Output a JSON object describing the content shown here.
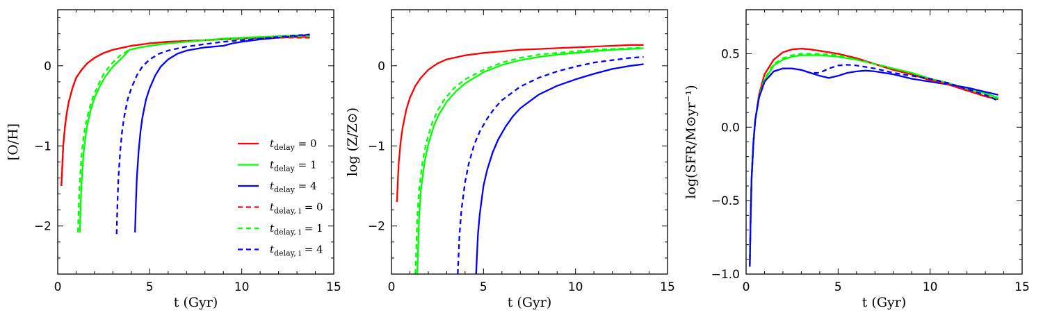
{
  "chart_data": [
    {
      "type": "line",
      "xlabel": "t (Gyr)",
      "ylabel": "[O/H]",
      "xlim": [
        0,
        15
      ],
      "ylim": [
        -2.6,
        0.7
      ],
      "xticks": [
        0,
        5,
        10,
        15
      ],
      "yticks": [
        -2,
        -1,
        0
      ],
      "xtick_labels": [
        "0",
        "5",
        "10",
        "15"
      ],
      "ytick_labels": [
        "−2",
        "−1",
        "0"
      ],
      "legend": {
        "position": "lower-right",
        "entries": [
          {
            "label": "t_delay = 0",
            "main": "t",
            "sub": "delay",
            "rest": " = 0",
            "color": "#ff0000",
            "dash": "solid"
          },
          {
            "label": "t_delay = 1",
            "main": "t",
            "sub": "delay",
            "rest": " = 1",
            "color": "#00ff00",
            "dash": "solid"
          },
          {
            "label": "t_delay = 4",
            "main": "t",
            "sub": "delay",
            "rest": " = 4",
            "color": "#0000ff",
            "dash": "solid"
          },
          {
            "label": "t_delay,i = 0",
            "main": "t",
            "sub": "delay, i",
            "rest": " = 0",
            "color": "#ff0000",
            "dash": "dashed"
          },
          {
            "label": "t_delay,i = 1",
            "main": "t",
            "sub": "delay, i",
            "rest": " = 1",
            "color": "#00ff00",
            "dash": "dashed"
          },
          {
            "label": "t_delay,i = 4",
            "main": "t",
            "sub": "delay, i",
            "rest": " = 4",
            "color": "#0000ff",
            "dash": "dashed"
          }
        ]
      },
      "series": [
        {
          "color": "#ff0000",
          "dash": "solid",
          "x": [
            0.2,
            0.3,
            0.4,
            0.5,
            0.6,
            0.8,
            1.0,
            1.3,
            1.6,
            2.0,
            2.5,
            3.0,
            4.0,
            5.0,
            6.0,
            7.0,
            8.0,
            9.0,
            10.0,
            11.0,
            12.0,
            13.0,
            13.7
          ],
          "y": [
            -1.5,
            -1.0,
            -0.75,
            -0.58,
            -0.45,
            -0.28,
            -0.15,
            -0.05,
            0.03,
            0.1,
            0.16,
            0.2,
            0.25,
            0.28,
            0.3,
            0.31,
            0.32,
            0.33,
            0.34,
            0.35,
            0.35,
            0.36,
            0.36
          ]
        },
        {
          "color": "#00ff00",
          "dash": "solid",
          "x": [
            1.2,
            1.25,
            1.3,
            1.4,
            1.5,
            1.6,
            1.8,
            2.0,
            2.3,
            2.6,
            3.0,
            3.5,
            3.9,
            4.5,
            5.0,
            6.0,
            7.0,
            8.0,
            9.0,
            10.0,
            11.0,
            12.0,
            13.0,
            13.7
          ],
          "y": [
            -2.08,
            -1.7,
            -1.45,
            -1.1,
            -0.9,
            -0.75,
            -0.55,
            -0.4,
            -0.25,
            -0.13,
            -0.01,
            0.1,
            0.2,
            0.23,
            0.25,
            0.28,
            0.3,
            0.32,
            0.34,
            0.35,
            0.36,
            0.37,
            0.38,
            0.38
          ]
        },
        {
          "color": "#0000ff",
          "dash": "solid",
          "x": [
            4.2,
            4.25,
            4.3,
            4.4,
            4.5,
            4.6,
            4.8,
            5.0,
            5.3,
            5.6,
            6.0,
            6.5,
            7.0,
            8.0,
            9.0,
            9.5,
            10.0,
            11.0,
            12.0,
            13.0,
            13.7
          ],
          "y": [
            -2.08,
            -1.7,
            -1.4,
            -1.05,
            -0.82,
            -0.65,
            -0.42,
            -0.28,
            -0.12,
            -0.01,
            0.08,
            0.15,
            0.19,
            0.23,
            0.25,
            0.28,
            0.3,
            0.33,
            0.35,
            0.37,
            0.39
          ]
        },
        {
          "color": "#ff0000",
          "dash": "dashed",
          "x": [
            0.2,
            0.3,
            0.4,
            0.5,
            0.6,
            0.8,
            1.0,
            1.3,
            1.6,
            2.0,
            2.5,
            3.0,
            4.0,
            5.0,
            6.0,
            7.0,
            8.0,
            9.0,
            10.0,
            11.0,
            12.0,
            13.0,
            13.7
          ],
          "y": [
            -1.5,
            -1.0,
            -0.75,
            -0.58,
            -0.45,
            -0.28,
            -0.15,
            -0.05,
            0.03,
            0.1,
            0.16,
            0.2,
            0.25,
            0.28,
            0.3,
            0.31,
            0.32,
            0.33,
            0.34,
            0.35,
            0.35,
            0.35,
            0.35
          ]
        },
        {
          "color": "#00ff00",
          "dash": "dashed",
          "x": [
            1.1,
            1.15,
            1.2,
            1.3,
            1.4,
            1.5,
            1.7,
            1.9,
            2.2,
            2.5,
            2.9,
            3.4,
            3.9,
            4.5,
            5.0,
            6.0,
            7.0,
            8.0,
            9.0,
            10.0,
            11.0,
            12.0,
            13.0,
            13.7
          ],
          "y": [
            -2.08,
            -1.7,
            -1.45,
            -1.1,
            -0.9,
            -0.75,
            -0.55,
            -0.4,
            -0.24,
            -0.1,
            0.02,
            0.13,
            0.2,
            0.23,
            0.25,
            0.28,
            0.3,
            0.32,
            0.33,
            0.34,
            0.35,
            0.36,
            0.37,
            0.37
          ]
        },
        {
          "color": "#0000ff",
          "dash": "dashed",
          "x": [
            3.2,
            3.25,
            3.3,
            3.4,
            3.5,
            3.6,
            3.8,
            4.0,
            4.3,
            4.6,
            5.0,
            5.5,
            6.0,
            7.0,
            8.0,
            9.0,
            10.0,
            11.0,
            12.0,
            13.0,
            13.7
          ],
          "y": [
            -2.1,
            -1.7,
            -1.4,
            -1.05,
            -0.82,
            -0.65,
            -0.42,
            -0.28,
            -0.12,
            -0.01,
            0.08,
            0.15,
            0.19,
            0.24,
            0.27,
            0.3,
            0.32,
            0.34,
            0.36,
            0.38,
            0.39
          ]
        }
      ]
    },
    {
      "type": "line",
      "xlabel": "t (Gyr)",
      "ylabel": "log (Z/Z⊙)",
      "xlim": [
        0,
        15
      ],
      "ylim": [
        -2.6,
        0.7
      ],
      "xticks": [
        0,
        5,
        10,
        15
      ],
      "yticks": [
        -2,
        -1,
        0
      ],
      "xtick_labels": [
        "0",
        "5",
        "10",
        "15"
      ],
      "ytick_labels": [
        "−2",
        "−1",
        "0"
      ],
      "series": [
        {
          "color": "#ff0000",
          "dash": "solid",
          "x": [
            0.3,
            0.35,
            0.4,
            0.5,
            0.6,
            0.8,
            1.0,
            1.3,
            1.6,
            2.0,
            2.5,
            3.0,
            4.0,
            5.0,
            6.0,
            7.0,
            8.0,
            9.0,
            10.0,
            11.0,
            12.0,
            13.0,
            13.7
          ],
          "y": [
            -1.7,
            -1.4,
            -1.2,
            -0.95,
            -0.78,
            -0.55,
            -0.4,
            -0.25,
            -0.15,
            -0.05,
            0.03,
            0.08,
            0.13,
            0.16,
            0.18,
            0.2,
            0.21,
            0.22,
            0.23,
            0.24,
            0.25,
            0.26,
            0.26
          ]
        },
        {
          "color": "#00ff00",
          "dash": "solid",
          "x": [
            1.4,
            1.5,
            1.6,
            1.8,
            2.0,
            2.3,
            2.6,
            3.0,
            3.5,
            4.0,
            5.0,
            6.0,
            7.0,
            8.0,
            9.0,
            10.0,
            11.0,
            12.0,
            13.0,
            13.7
          ],
          "y": [
            -2.6,
            -1.9,
            -1.55,
            -1.2,
            -0.98,
            -0.75,
            -0.6,
            -0.45,
            -0.32,
            -0.22,
            -0.08,
            0.01,
            0.07,
            0.11,
            0.14,
            0.16,
            0.18,
            0.2,
            0.21,
            0.22
          ]
        },
        {
          "color": "#0000ff",
          "dash": "solid",
          "x": [
            4.6,
            4.7,
            4.8,
            5.0,
            5.2,
            5.5,
            5.8,
            6.2,
            6.6,
            7.0,
            8.0,
            9.0,
            10.0,
            11.0,
            12.0,
            13.0,
            13.7
          ],
          "y": [
            -2.6,
            -2.1,
            -1.85,
            -1.5,
            -1.3,
            -1.08,
            -0.92,
            -0.76,
            -0.63,
            -0.53,
            -0.36,
            -0.25,
            -0.17,
            -0.1,
            -0.04,
            0.0,
            0.02
          ]
        },
        {
          "color": "#00ff00",
          "dash": "dashed",
          "x": [
            1.3,
            1.4,
            1.5,
            1.7,
            1.9,
            2.2,
            2.5,
            2.9,
            3.4,
            4.0,
            5.0,
            6.0,
            7.0,
            8.0,
            9.0,
            10.0,
            11.0,
            12.0,
            13.0,
            13.7
          ],
          "y": [
            -2.6,
            -1.9,
            -1.55,
            -1.18,
            -0.95,
            -0.72,
            -0.56,
            -0.41,
            -0.28,
            -0.17,
            -0.05,
            0.04,
            0.1,
            0.14,
            0.16,
            0.18,
            0.2,
            0.21,
            0.22,
            0.23
          ]
        },
        {
          "color": "#0000ff",
          "dash": "dashed",
          "x": [
            3.6,
            3.7,
            3.8,
            4.0,
            4.2,
            4.5,
            4.8,
            5.2,
            5.6,
            6.0,
            7.0,
            8.0,
            9.0,
            10.0,
            11.0,
            12.0,
            13.0,
            13.7
          ],
          "y": [
            -2.6,
            -2.1,
            -1.8,
            -1.45,
            -1.22,
            -0.98,
            -0.82,
            -0.66,
            -0.53,
            -0.43,
            -0.26,
            -0.15,
            -0.07,
            -0.01,
            0.04,
            0.07,
            0.1,
            0.11
          ]
        }
      ]
    },
    {
      "type": "line",
      "xlabel": "t (Gyr)",
      "ylabel": "log(SFR/M⊙yr⁻¹)",
      "xlim": [
        0,
        15
      ],
      "ylim": [
        -1.0,
        0.8
      ],
      "xticks": [
        0,
        5,
        10,
        15
      ],
      "yticks": [
        -1.0,
        -0.5,
        0.0,
        0.5
      ],
      "xtick_labels": [
        "0",
        "5",
        "10",
        "15"
      ],
      "ytick_labels": [
        "−1.0",
        "−0.5",
        "0.0",
        "0.5"
      ],
      "series": [
        {
          "color": "#ff0000",
          "dash": "solid",
          "x": [
            0.2,
            0.25,
            0.3,
            0.4,
            0.5,
            0.7,
            1.0,
            1.5,
            2.0,
            2.5,
            3.0,
            3.5,
            4.0,
            5.0,
            6.0,
            7.0,
            8.0,
            9.0,
            10.0,
            11.0,
            12.0,
            13.0,
            13.7
          ],
          "y": [
            -0.95,
            -0.6,
            -0.35,
            -0.1,
            0.05,
            0.22,
            0.36,
            0.46,
            0.51,
            0.53,
            0.535,
            0.53,
            0.52,
            0.5,
            0.47,
            0.43,
            0.39,
            0.36,
            0.32,
            0.29,
            0.25,
            0.21,
            0.19
          ]
        },
        {
          "color": "#00ff00",
          "dash": "solid",
          "x": [
            0.2,
            0.25,
            0.3,
            0.4,
            0.5,
            0.7,
            1.0,
            1.5,
            2.0,
            2.5,
            3.0,
            3.5,
            4.0,
            5.0,
            6.0,
            7.0,
            8.0,
            9.0,
            10.0,
            11.0,
            12.0,
            13.0,
            13.7
          ],
          "y": [
            -0.95,
            -0.6,
            -0.35,
            -0.1,
            0.05,
            0.2,
            0.32,
            0.42,
            0.46,
            0.48,
            0.49,
            0.49,
            0.49,
            0.48,
            0.46,
            0.43,
            0.4,
            0.37,
            0.33,
            0.3,
            0.26,
            0.23,
            0.2
          ]
        },
        {
          "color": "#0000ff",
          "dash": "solid",
          "x": [
            0.2,
            0.25,
            0.3,
            0.4,
            0.5,
            0.7,
            1.0,
            1.5,
            2.0,
            2.5,
            3.0,
            3.5,
            4.0,
            4.5,
            5.0,
            5.5,
            6.0,
            6.5,
            7.0,
            8.0,
            9.0,
            10.0,
            11.0,
            12.0,
            13.0,
            13.7
          ],
          "y": [
            -0.95,
            -0.6,
            -0.35,
            -0.1,
            0.05,
            0.2,
            0.31,
            0.38,
            0.4,
            0.4,
            0.39,
            0.37,
            0.35,
            0.335,
            0.35,
            0.37,
            0.38,
            0.385,
            0.38,
            0.36,
            0.33,
            0.31,
            0.29,
            0.27,
            0.24,
            0.22
          ]
        },
        {
          "color": "#ff0000",
          "dash": "dashed",
          "x": [
            0.2,
            0.25,
            0.3,
            0.4,
            0.5,
            0.7,
            1.0,
            1.5,
            2.0,
            2.5,
            3.0,
            3.5,
            4.0,
            5.0,
            6.0,
            7.0,
            8.0,
            9.0,
            10.0,
            11.0,
            12.0,
            13.0,
            13.7
          ],
          "y": [
            -0.95,
            -0.6,
            -0.35,
            -0.1,
            0.05,
            0.22,
            0.36,
            0.46,
            0.51,
            0.53,
            0.535,
            0.53,
            0.52,
            0.5,
            0.47,
            0.43,
            0.39,
            0.36,
            0.32,
            0.29,
            0.25,
            0.21,
            0.19
          ]
        },
        {
          "color": "#00ff00",
          "dash": "dashed",
          "x": [
            0.2,
            0.25,
            0.3,
            0.4,
            0.5,
            0.7,
            1.0,
            1.5,
            2.0,
            2.5,
            3.0,
            3.5,
            4.0,
            5.0,
            6.0,
            7.0,
            8.0,
            9.0,
            10.0,
            11.0,
            12.0,
            13.0,
            13.7
          ],
          "y": [
            -0.95,
            -0.6,
            -0.35,
            -0.1,
            0.05,
            0.21,
            0.33,
            0.43,
            0.47,
            0.49,
            0.5,
            0.5,
            0.5,
            0.49,
            0.46,
            0.43,
            0.4,
            0.37,
            0.33,
            0.3,
            0.26,
            0.22,
            0.19
          ]
        },
        {
          "color": "#0000ff",
          "dash": "dashed",
          "x": [
            0.2,
            0.25,
            0.3,
            0.4,
            0.5,
            0.7,
            1.0,
            1.5,
            2.0,
            2.5,
            3.0,
            3.5,
            4.0,
            4.5,
            5.0,
            5.5,
            6.0,
            7.0,
            8.0,
            9.0,
            10.0,
            11.0,
            12.0,
            13.0,
            13.7
          ],
          "y": [
            -0.95,
            -0.6,
            -0.35,
            -0.1,
            0.05,
            0.2,
            0.31,
            0.38,
            0.4,
            0.4,
            0.39,
            0.37,
            0.37,
            0.4,
            0.42,
            0.425,
            0.42,
            0.4,
            0.37,
            0.35,
            0.33,
            0.3,
            0.26,
            0.22,
            0.18
          ]
        }
      ]
    }
  ]
}
